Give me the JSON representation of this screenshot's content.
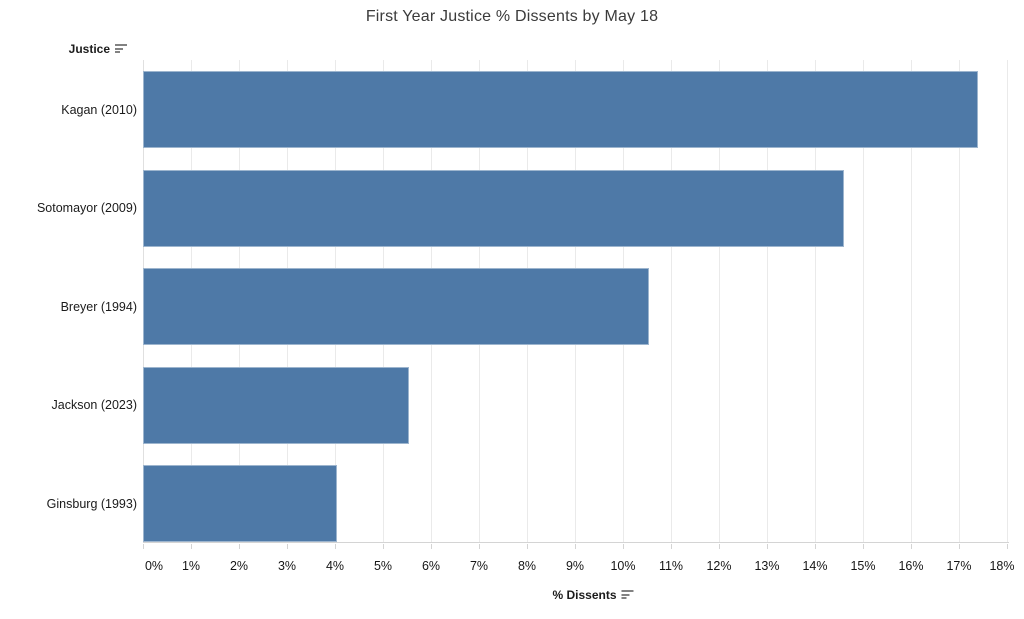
{
  "title": "First Year Justice % Dissents by May 18",
  "row_header": {
    "label": "Justice",
    "sort_icon": "sort-descending-icon"
  },
  "x_axis": {
    "label": "% Dissents",
    "sort_icon": "sort-descending-icon",
    "tick_labels": [
      "0%",
      "1%",
      "2%",
      "3%",
      "4%",
      "5%",
      "6%",
      "7%",
      "8%",
      "9%",
      "10%",
      "11%",
      "12%",
      "13%",
      "14%",
      "15%",
      "16%",
      "17%",
      "18%"
    ]
  },
  "chart_data": {
    "type": "bar",
    "orientation": "horizontal",
    "title": "First Year Justice % Dissents by May 18",
    "categories": [
      "Kagan (2010)",
      "Sotomayor (2009)",
      "Breyer (1994)",
      "Jackson (2023)",
      "Ginsburg (1993)"
    ],
    "values": [
      17.4,
      14.6,
      10.55,
      5.55,
      4.05
    ],
    "xlabel": "% Dissents",
    "ylabel": "Justice",
    "xlim": [
      0,
      18
    ],
    "x_tick_step": 1,
    "x_tick_format": "percent",
    "grid": true,
    "legend": false,
    "sort": "descending"
  },
  "colors": {
    "bar_fill": "#4e79a7",
    "bar_edge": "#9db4d0",
    "grid_line": "#eaeaea",
    "axis_line": "#d4d4d4",
    "title_text": "#3b3b3b",
    "label_text": "#1b1b1b",
    "background": "#ffffff"
  }
}
